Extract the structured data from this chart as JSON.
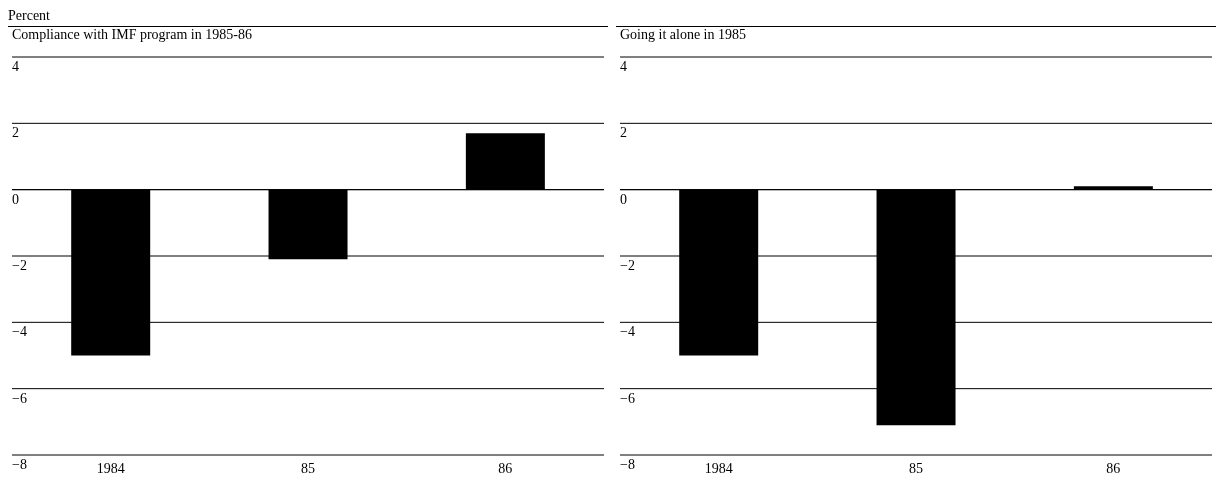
{
  "chart_data": [
    {
      "type": "bar",
      "ylabel": "Percent",
      "title": "Compliance with IMF program in 1985-86",
      "categories": [
        "1984",
        "85",
        "86"
      ],
      "series": [
        {
          "color": "#000000",
          "values": [
            -5.0,
            -2.1,
            1.7
          ]
        }
      ],
      "ylim": [
        -8,
        4
      ],
      "yticks": [
        -8,
        -6,
        -4,
        -2,
        0,
        2,
        4
      ],
      "grid": "y"
    },
    {
      "type": "bar",
      "title": "Going it alone in 1985",
      "categories": [
        "1984",
        "85",
        "86"
      ],
      "series": [
        {
          "color": "#000000",
          "values": [
            -5.0,
            -7.1,
            0.1
          ]
        }
      ],
      "ylim": [
        -8,
        4
      ],
      "yticks": [
        -8,
        -6,
        -4,
        -2,
        0,
        2,
        4
      ],
      "grid": "y"
    }
  ]
}
